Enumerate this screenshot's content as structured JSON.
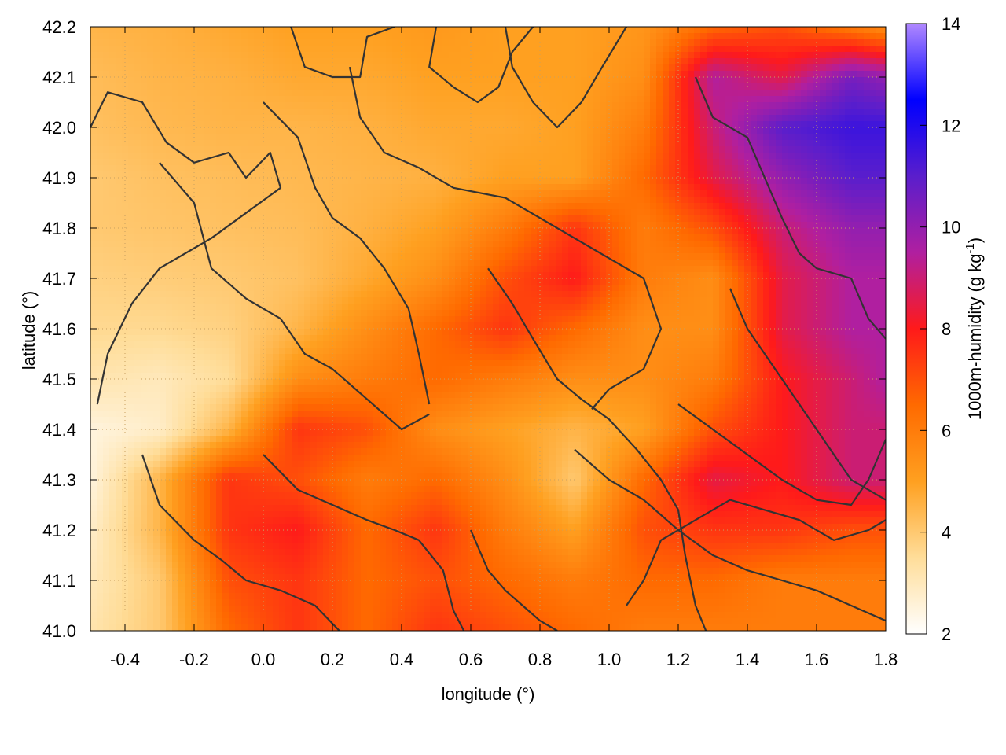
{
  "chart_data": {
    "type": "heatmap",
    "title": "",
    "xlabel": "longitude (°)",
    "ylabel": "latitude (°)",
    "colorbar_label": "1000m-humidity (g kg",
    "colorbar_label_sup": "-1",
    "colorbar_label_end": ")",
    "xlim": [
      -0.5,
      1.8
    ],
    "ylim": [
      41.0,
      42.2
    ],
    "clim": [
      2,
      14
    ],
    "x_ticks": [
      -0.4,
      -0.2,
      0.0,
      0.2,
      0.4,
      0.6,
      0.8,
      1.0,
      1.2,
      1.4,
      1.6,
      1.8
    ],
    "x_tick_labels": [
      "-0.4",
      "-0.2",
      "0.0",
      "0.2",
      "0.4",
      "0.6",
      "0.8",
      "1.0",
      "1.2",
      "1.4",
      "1.6",
      "1.8"
    ],
    "y_ticks": [
      41.0,
      41.1,
      41.2,
      41.3,
      41.4,
      41.5,
      41.6,
      41.7,
      41.8,
      41.9,
      42.0,
      42.1,
      42.2
    ],
    "y_tick_labels": [
      "41.0",
      "41.1",
      "41.2",
      "41.3",
      "41.4",
      "41.5",
      "41.6",
      "41.7",
      "41.8",
      "41.9",
      "42.0",
      "42.1",
      "42.2"
    ],
    "colorbar_ticks": [
      2,
      4,
      6,
      8,
      10,
      12,
      14
    ],
    "colorbar_tick_labels": [
      "2",
      "4",
      "6",
      "8",
      "10",
      "12",
      "14"
    ],
    "grid": true,
    "legend": "none",
    "colormap": [
      "#ffffff",
      "#ffdd99",
      "#ffa020",
      "#ff6a00",
      "#ff1a1a",
      "#b01fa0",
      "#5a1ecc",
      "#0000ff",
      "#b088ff"
    ],
    "humidity_field": {
      "x": [
        -0.5,
        -0.3,
        -0.1,
        0.1,
        0.3,
        0.5,
        0.7,
        0.9,
        1.1,
        1.3,
        1.5,
        1.7,
        1.8
      ],
      "y": [
        42.2,
        42.1,
        42.0,
        41.9,
        41.8,
        41.7,
        41.6,
        41.5,
        41.4,
        41.3,
        41.2,
        41.1,
        41.0
      ],
      "values": [
        [
          4.5,
          4.6,
          4.8,
          5.0,
          5.0,
          5.2,
          5.0,
          5.0,
          5.3,
          6.5,
          7.0,
          6.0,
          5.5
        ],
        [
          4.3,
          4.5,
          4.6,
          4.8,
          4.8,
          5.0,
          5.0,
          5.0,
          5.5,
          9.5,
          8.5,
          10.5,
          10.0
        ],
        [
          4.2,
          4.4,
          4.5,
          4.5,
          4.6,
          4.8,
          4.8,
          5.0,
          6.0,
          9.0,
          11.0,
          11.5,
          11.5
        ],
        [
          4.0,
          4.2,
          4.3,
          4.4,
          4.5,
          4.6,
          5.0,
          5.0,
          6.5,
          8.5,
          10.0,
          11.0,
          11.0
        ],
        [
          4.0,
          4.1,
          4.2,
          4.3,
          4.6,
          5.0,
          6.0,
          7.5,
          6.0,
          7.0,
          9.0,
          10.0,
          10.0
        ],
        [
          3.8,
          3.9,
          4.0,
          4.2,
          4.8,
          5.5,
          7.0,
          8.0,
          6.0,
          5.5,
          8.5,
          9.5,
          9.5
        ],
        [
          3.6,
          3.6,
          3.8,
          4.5,
          5.5,
          6.5,
          7.5,
          6.5,
          5.5,
          5.5,
          8.5,
          9.5,
          9.5
        ],
        [
          3.2,
          3.0,
          3.5,
          5.5,
          6.0,
          6.5,
          6.0,
          5.5,
          5.5,
          6.0,
          8.0,
          9.0,
          9.5
        ],
        [
          2.5,
          2.8,
          4.5,
          7.5,
          7.0,
          5.5,
          5.0,
          4.5,
          5.0,
          7.0,
          8.0,
          9.0,
          9.0
        ],
        [
          2.5,
          4.5,
          7.5,
          7.0,
          6.0,
          6.5,
          5.5,
          4.0,
          6.5,
          8.5,
          8.0,
          9.0,
          9.0
        ],
        [
          2.8,
          4.5,
          7.5,
          8.0,
          6.5,
          7.5,
          6.0,
          5.0,
          7.0,
          7.5,
          7.5,
          7.0,
          7.0
        ],
        [
          3.0,
          4.0,
          7.0,
          7.5,
          6.5,
          7.0,
          6.5,
          6.0,
          6.5,
          6.5,
          6.0,
          6.0,
          6.0
        ],
        [
          3.2,
          4.0,
          6.5,
          7.5,
          6.5,
          7.5,
          7.0,
          6.5,
          6.0,
          6.0,
          6.0,
          6.0,
          6.0
        ]
      ]
    },
    "contour_lines": [
      [
        [
          -0.5,
          42.0
        ],
        [
          -0.45,
          42.07
        ],
        [
          -0.35,
          42.05
        ],
        [
          -0.28,
          41.97
        ],
        [
          -0.2,
          41.93
        ],
        [
          -0.1,
          41.95
        ],
        [
          -0.05,
          41.9
        ],
        [
          0.02,
          41.95
        ],
        [
          0.05,
          41.88
        ],
        [
          -0.05,
          41.83
        ],
        [
          -0.15,
          41.78
        ],
        [
          -0.3,
          41.72
        ],
        [
          -0.38,
          41.65
        ],
        [
          -0.45,
          41.55
        ],
        [
          -0.48,
          41.45
        ]
      ],
      [
        [
          -0.3,
          41.93
        ],
        [
          -0.2,
          41.85
        ],
        [
          -0.15,
          41.72
        ],
        [
          -0.05,
          41.66
        ],
        [
          0.05,
          41.62
        ],
        [
          0.12,
          41.55
        ],
        [
          0.2,
          41.52
        ],
        [
          0.3,
          41.46
        ],
        [
          0.4,
          41.4
        ],
        [
          0.48,
          41.43
        ]
      ],
      [
        [
          0.0,
          42.05
        ],
        [
          0.1,
          41.98
        ],
        [
          0.15,
          41.88
        ],
        [
          0.2,
          41.82
        ],
        [
          0.28,
          41.78
        ],
        [
          0.35,
          41.72
        ],
        [
          0.42,
          41.64
        ],
        [
          0.45,
          41.55
        ],
        [
          0.48,
          41.45
        ]
      ],
      [
        [
          0.08,
          42.2
        ],
        [
          0.12,
          42.12
        ],
        [
          0.2,
          42.1
        ],
        [
          0.28,
          42.1
        ],
        [
          0.3,
          42.18
        ],
        [
          0.38,
          42.2
        ]
      ],
      [
        [
          0.25,
          42.12
        ],
        [
          0.28,
          42.02
        ],
        [
          0.35,
          41.95
        ],
        [
          0.45,
          41.92
        ],
        [
          0.55,
          41.88
        ],
        [
          0.7,
          41.86
        ],
        [
          0.8,
          41.82
        ],
        [
          0.9,
          41.78
        ],
        [
          1.0,
          41.74
        ],
        [
          1.1,
          41.7
        ],
        [
          1.15,
          41.6
        ],
        [
          1.1,
          41.52
        ],
        [
          1.0,
          41.48
        ],
        [
          0.95,
          41.44
        ]
      ],
      [
        [
          0.5,
          42.2
        ],
        [
          0.48,
          42.12
        ],
        [
          0.55,
          42.08
        ],
        [
          0.62,
          42.05
        ],
        [
          0.68,
          42.08
        ],
        [
          0.72,
          42.15
        ],
        [
          0.78,
          42.2
        ]
      ],
      [
        [
          0.7,
          42.2
        ],
        [
          0.72,
          42.12
        ],
        [
          0.78,
          42.05
        ],
        [
          0.85,
          42.0
        ],
        [
          0.92,
          42.05
        ],
        [
          0.98,
          42.12
        ],
        [
          1.05,
          42.2
        ]
      ],
      [
        [
          0.65,
          41.72
        ],
        [
          0.72,
          41.65
        ],
        [
          0.78,
          41.58
        ],
        [
          0.85,
          41.5
        ],
        [
          0.92,
          41.46
        ],
        [
          1.0,
          41.42
        ],
        [
          1.08,
          41.36
        ],
        [
          1.15,
          41.3
        ],
        [
          1.2,
          41.24
        ],
        [
          1.22,
          41.15
        ],
        [
          1.25,
          41.05
        ],
        [
          1.28,
          41.0
        ]
      ],
      [
        [
          0.9,
          41.36
        ],
        [
          1.0,
          41.3
        ],
        [
          1.1,
          41.26
        ],
        [
          1.2,
          41.2
        ],
        [
          1.3,
          41.15
        ],
        [
          1.4,
          41.12
        ],
        [
          1.5,
          41.1
        ],
        [
          1.6,
          41.08
        ],
        [
          1.7,
          41.05
        ],
        [
          1.8,
          41.02
        ]
      ],
      [
        [
          0.0,
          41.35
        ],
        [
          0.1,
          41.28
        ],
        [
          0.2,
          41.25
        ],
        [
          0.3,
          41.22
        ],
        [
          0.38,
          41.2
        ],
        [
          0.45,
          41.18
        ],
        [
          0.52,
          41.12
        ],
        [
          0.55,
          41.04
        ],
        [
          0.58,
          41.0
        ]
      ],
      [
        [
          -0.35,
          41.35
        ],
        [
          -0.3,
          41.25
        ],
        [
          -0.2,
          41.18
        ],
        [
          -0.12,
          41.14
        ],
        [
          -0.05,
          41.1
        ],
        [
          0.05,
          41.08
        ],
        [
          0.15,
          41.05
        ],
        [
          0.22,
          41.0
        ]
      ],
      [
        [
          1.2,
          41.45
        ],
        [
          1.3,
          41.4
        ],
        [
          1.4,
          41.35
        ],
        [
          1.5,
          41.3
        ],
        [
          1.6,
          41.26
        ],
        [
          1.7,
          41.25
        ],
        [
          1.75,
          41.3
        ],
        [
          1.8,
          41.38
        ]
      ],
      [
        [
          1.25,
          42.1
        ],
        [
          1.3,
          42.02
        ],
        [
          1.4,
          41.98
        ],
        [
          1.45,
          41.9
        ],
        [
          1.5,
          41.82
        ],
        [
          1.55,
          41.75
        ],
        [
          1.6,
          41.72
        ],
        [
          1.7,
          41.7
        ],
        [
          1.75,
          41.62
        ],
        [
          1.8,
          41.58
        ]
      ],
      [
        [
          1.35,
          41.68
        ],
        [
          1.4,
          41.6
        ],
        [
          1.45,
          41.55
        ],
        [
          1.5,
          41.5
        ],
        [
          1.55,
          41.45
        ],
        [
          1.6,
          41.4
        ],
        [
          1.65,
          41.35
        ],
        [
          1.7,
          41.3
        ],
        [
          1.75,
          41.28
        ],
        [
          1.8,
          41.26
        ]
      ],
      [
        [
          0.6,
          41.2
        ],
        [
          0.65,
          41.12
        ],
        [
          0.7,
          41.08
        ],
        [
          0.75,
          41.05
        ],
        [
          0.8,
          41.02
        ],
        [
          0.85,
          41.0
        ]
      ],
      [
        [
          1.05,
          41.05
        ],
        [
          1.1,
          41.1
        ],
        [
          1.15,
          41.18
        ],
        [
          1.25,
          41.22
        ],
        [
          1.35,
          41.26
        ],
        [
          1.45,
          41.24
        ],
        [
          1.55,
          41.22
        ],
        [
          1.65,
          41.18
        ],
        [
          1.75,
          41.2
        ],
        [
          1.8,
          41.22
        ]
      ]
    ]
  }
}
